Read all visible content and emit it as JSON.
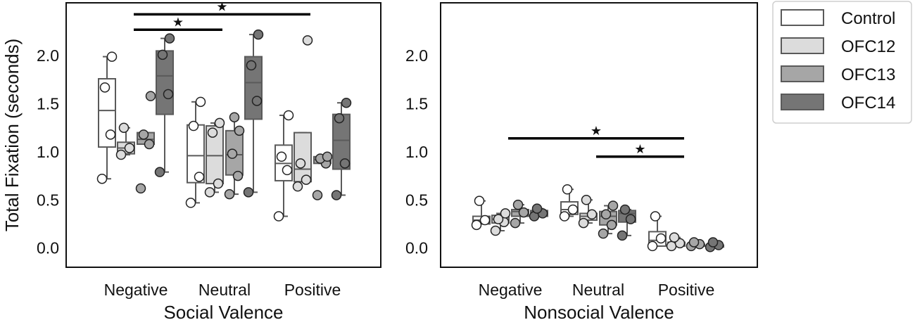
{
  "colors": {
    "Control": "#ffffff",
    "OFC12": "#dcdcdc",
    "OFC13": "#a6a6a6",
    "OFC14": "#757575",
    "edge": "#5a5a5a",
    "frame": "#111111"
  },
  "chart_data": [
    {
      "type": "box",
      "panel": "social",
      "xlabel": "Social Valence",
      "ylabel": "Total Fixation (seconds)",
      "categories": [
        "Negative",
        "Neutral",
        "Positive"
      ],
      "yticks": [
        0.0,
        0.5,
        1.0,
        1.5,
        2.0
      ],
      "ytick_labels": [
        "0.0",
        "0.5",
        "1.0",
        "1.5",
        "2.0"
      ],
      "ylim": [
        -0.2,
        2.55
      ],
      "groups": [
        "Control",
        "OFC12",
        "OFC13",
        "OFC14"
      ],
      "boxes": [
        {
          "cat": 0,
          "group": "Control",
          "whislo": 0.72,
          "q1": 1.05,
          "med": 1.43,
          "q3": 1.76,
          "whishi": 1.99,
          "points": [
            0.72,
            1.18,
            1.67,
            1.99
          ]
        },
        {
          "cat": 0,
          "group": "OFC12",
          "whislo": 0.97,
          "q1": 0.98,
          "med": 1.04,
          "q3": 1.1,
          "whishi": 1.25,
          "points": [
            0.97,
            1.04,
            1.25
          ]
        },
        {
          "cat": 0,
          "group": "OFC13",
          "whislo": 1.08,
          "q1": 1.08,
          "med": 1.13,
          "q3": 1.2,
          "whishi": 1.2,
          "points": [
            0.62,
            1.08,
            1.18,
            1.58
          ]
        },
        {
          "cat": 0,
          "group": "OFC14",
          "whislo": 0.79,
          "q1": 1.39,
          "med": 1.79,
          "q3": 2.05,
          "whishi": 2.18,
          "points": [
            0.79,
            1.6,
            2.01,
            2.18
          ]
        },
        {
          "cat": 1,
          "group": "Control",
          "whislo": 0.47,
          "q1": 0.68,
          "med": 0.96,
          "q3": 1.28,
          "whishi": 1.52,
          "points": [
            0.47,
            0.74,
            1.27,
            1.52
          ]
        },
        {
          "cat": 1,
          "group": "OFC12",
          "whislo": 0.58,
          "q1": 0.67,
          "med": 0.96,
          "q3": 1.27,
          "whishi": 1.3,
          "points": [
            0.58,
            0.67,
            1.2,
            1.3
          ]
        },
        {
          "cat": 1,
          "group": "OFC13",
          "whislo": 0.56,
          "q1": 0.76,
          "med": 0.97,
          "q3": 1.22,
          "whishi": 1.36,
          "points": [
            0.56,
            0.75,
            0.98,
            1.22,
            1.36
          ]
        },
        {
          "cat": 1,
          "group": "OFC14",
          "whislo": 0.58,
          "q1": 1.34,
          "med": 1.72,
          "q3": 1.99,
          "whishi": 2.22,
          "points": [
            0.58,
            1.53,
            1.9,
            2.22
          ]
        },
        {
          "cat": 2,
          "group": "Control",
          "whislo": 0.33,
          "q1": 0.7,
          "med": 0.88,
          "q3": 1.07,
          "whishi": 1.38,
          "points": [
            0.33,
            0.81,
            0.95,
            1.38
          ]
        },
        {
          "cat": 2,
          "group": "OFC12",
          "whislo": 0.69,
          "q1": 0.69,
          "med": 0.82,
          "q3": 1.2,
          "whishi": 1.2,
          "points": [
            0.64,
            0.71,
            0.88,
            2.16
          ]
        },
        {
          "cat": 2,
          "group": "OFC13",
          "whislo": 0.88,
          "q1": 0.88,
          "med": 0.92,
          "q3": 0.95,
          "whishi": 0.95,
          "points": [
            0.55,
            0.88,
            0.93,
            0.95
          ]
        },
        {
          "cat": 2,
          "group": "OFC14",
          "whislo": 0.55,
          "q1": 0.82,
          "med": 1.12,
          "q3": 1.39,
          "whishi": 1.51,
          "points": [
            0.55,
            0.88,
            1.35,
            1.51
          ]
        }
      ],
      "significance": [
        {
          "from_cat": 0,
          "to_cat": 2,
          "y": 2.43,
          "label": "★"
        },
        {
          "from_cat": 0,
          "to_cat": 1,
          "y": 2.27,
          "label": "★"
        }
      ]
    },
    {
      "type": "box",
      "panel": "nonsocial",
      "xlabel": "Nonsocial Valence",
      "categories": [
        "Negative",
        "Neutral",
        "Positive"
      ],
      "yticks": [
        0.0,
        0.5,
        1.0,
        1.5,
        2.0
      ],
      "ytick_labels": [
        "0.0",
        "0.5",
        "1.0",
        "1.5",
        "2.0"
      ],
      "ylim": [
        -0.2,
        2.55
      ],
      "groups": [
        "Control",
        "OFC12",
        "OFC13",
        "OFC14"
      ],
      "boxes": [
        {
          "cat": 0,
          "group": "Control",
          "whislo": 0.25,
          "q1": 0.25,
          "med": 0.29,
          "q3": 0.33,
          "whishi": 0.49,
          "points": [
            0.24,
            0.29,
            0.49
          ]
        },
        {
          "cat": 0,
          "group": "OFC12",
          "whislo": 0.18,
          "q1": 0.26,
          "med": 0.3,
          "q3": 0.34,
          "whishi": 0.36,
          "points": [
            0.18,
            0.27,
            0.3,
            0.36
          ]
        },
        {
          "cat": 0,
          "group": "OFC13",
          "whislo": 0.26,
          "q1": 0.33,
          "med": 0.38,
          "q3": 0.4,
          "whishi": 0.45,
          "points": [
            0.26,
            0.37,
            0.45
          ]
        },
        {
          "cat": 0,
          "group": "OFC14",
          "whislo": 0.33,
          "q1": 0.33,
          "med": 0.36,
          "q3": 0.39,
          "whishi": 0.41,
          "points": [
            0.33,
            0.36,
            0.41
          ]
        },
        {
          "cat": 1,
          "group": "Control",
          "whislo": 0.33,
          "q1": 0.35,
          "med": 0.4,
          "q3": 0.48,
          "whishi": 0.61,
          "points": [
            0.33,
            0.4,
            0.61
          ]
        },
        {
          "cat": 1,
          "group": "OFC12",
          "whislo": 0.26,
          "q1": 0.29,
          "med": 0.33,
          "q3": 0.36,
          "whishi": 0.5,
          "points": [
            0.26,
            0.35,
            0.5
          ]
        },
        {
          "cat": 1,
          "group": "OFC13",
          "whislo": 0.15,
          "q1": 0.24,
          "med": 0.33,
          "q3": 0.38,
          "whishi": 0.44,
          "points": [
            0.15,
            0.24,
            0.35,
            0.44
          ]
        },
        {
          "cat": 1,
          "group": "OFC14",
          "whislo": 0.13,
          "q1": 0.27,
          "med": 0.36,
          "q3": 0.39,
          "whishi": 0.4,
          "points": [
            0.13,
            0.3,
            0.4
          ]
        },
        {
          "cat": 2,
          "group": "Control",
          "whislo": 0.02,
          "q1": 0.02,
          "med": 0.08,
          "q3": 0.17,
          "whishi": 0.33,
          "points": [
            0.02,
            0.1,
            0.33
          ]
        },
        {
          "cat": 2,
          "group": "OFC12",
          "whislo": 0.02,
          "q1": 0.02,
          "med": 0.04,
          "q3": 0.06,
          "whishi": 0.11,
          "points": [
            0.02,
            0.05,
            0.11
          ]
        },
        {
          "cat": 2,
          "group": "OFC13",
          "whislo": 0.02,
          "q1": 0.02,
          "med": 0.03,
          "q3": 0.04,
          "whishi": 0.06,
          "points": [
            0.02,
            0.04,
            0.06
          ]
        },
        {
          "cat": 2,
          "group": "OFC14",
          "whislo": 0.01,
          "q1": 0.01,
          "med": 0.02,
          "q3": 0.03,
          "whishi": 0.06,
          "points": [
            0.01,
            0.03,
            0.06
          ]
        }
      ],
      "significance": [
        {
          "from_cat": 0,
          "to_cat": 2,
          "y": 1.14,
          "label": "★"
        },
        {
          "from_cat": 1,
          "to_cat": 2,
          "y": 0.95,
          "label": "★"
        }
      ]
    }
  ],
  "legend": {
    "position": "right",
    "entries": [
      "Control",
      "OFC12",
      "OFC13",
      "OFC14"
    ]
  }
}
